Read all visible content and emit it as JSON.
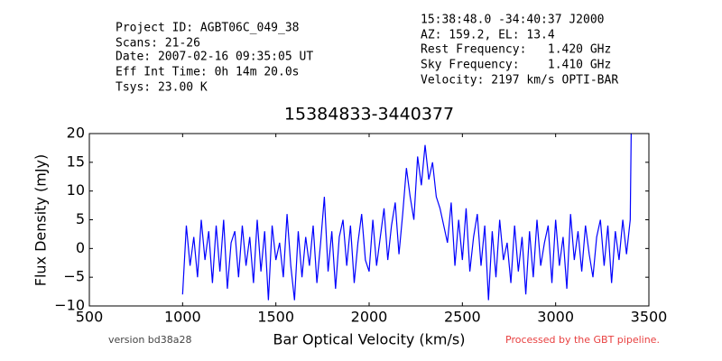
{
  "header": {
    "left": [
      "Project ID: AGBT06C_049_38",
      "Scans: 21-26",
      "Date: 2007-02-16 09:35:05 UT",
      "Eff Int Time: 0h 14m 20.0s",
      "Tsys: 23.00 K"
    ],
    "right": [
      "15:38:48.0 -34:40:37 J2000",
      "AZ: 159.2, EL: 13.4",
      "Rest Frequency:   1.420 GHz",
      "Sky Frequency:    1.410 GHz",
      "Velocity: 2197 km/s OPTI-BAR"
    ]
  },
  "footer": {
    "version": "version bd38a28",
    "pipeline": "Processed by the GBT pipeline."
  },
  "chart_data": {
    "type": "line",
    "title": "15384833-3440377",
    "x_label": "Bar Optical Velocity (km/s)",
    "y_label": "Flux Density (mJy)",
    "color": "#0000ff",
    "x": [
      1000,
      1020,
      1040,
      1060,
      1080,
      1100,
      1120,
      1140,
      1160,
      1180,
      1200,
      1220,
      1240,
      1260,
      1280,
      1300,
      1320,
      1340,
      1360,
      1380,
      1400,
      1420,
      1440,
      1460,
      1480,
      1500,
      1520,
      1540,
      1560,
      1580,
      1600,
      1620,
      1640,
      1660,
      1680,
      1700,
      1720,
      1740,
      1760,
      1780,
      1800,
      1820,
      1840,
      1860,
      1880,
      1900,
      1920,
      1940,
      1960,
      1980,
      2000,
      2020,
      2040,
      2060,
      2080,
      2100,
      2120,
      2140,
      2160,
      2180,
      2200,
      2220,
      2240,
      2260,
      2280,
      2300,
      2320,
      2340,
      2360,
      2380,
      2400,
      2420,
      2440,
      2460,
      2480,
      2500,
      2520,
      2540,
      2560,
      2580,
      2600,
      2620,
      2640,
      2660,
      2680,
      2700,
      2720,
      2740,
      2760,
      2780,
      2800,
      2820,
      2840,
      2860,
      2880,
      2900,
      2920,
      2940,
      2960,
      2980,
      3000,
      3020,
      3040,
      3060,
      3080,
      3100,
      3120,
      3140,
      3160,
      3180,
      3200,
      3220,
      3240,
      3260,
      3280,
      3300,
      3320,
      3340,
      3360,
      3380,
      3400,
      3405
    ],
    "values": [
      -8,
      4,
      -3,
      2,
      -5,
      5,
      -2,
      3,
      -6,
      4,
      -4,
      5,
      -7,
      1,
      3,
      -5,
      4,
      -3,
      2,
      -6,
      5,
      -4,
      3,
      -9,
      4,
      -2,
      1,
      -5,
      6,
      -3,
      -9,
      3,
      -5,
      2,
      -3,
      4,
      -6,
      1,
      9,
      -4,
      3,
      -7,
      2,
      5,
      -3,
      4,
      -6,
      1,
      6,
      -2,
      -4,
      5,
      -3,
      2,
      7,
      -2,
      4,
      8,
      -1,
      6,
      14,
      9,
      5,
      16,
      11,
      18,
      12,
      15,
      9,
      7,
      4,
      1,
      8,
      -3,
      5,
      -2,
      7,
      -4,
      2,
      6,
      -3,
      4,
      -9,
      3,
      -5,
      5,
      -2,
      1,
      -6,
      4,
      -4,
      2,
      -8,
      3,
      -5,
      5,
      -3,
      1,
      4,
      -6,
      5,
      -3,
      2,
      -7,
      6,
      -2,
      3,
      -4,
      4,
      -1,
      -5,
      2,
      5,
      -3,
      4,
      -6,
      3,
      -2,
      5,
      -1,
      5,
      20
    ],
    "xlim": [
      500,
      3500
    ],
    "xticks": [
      500,
      1000,
      1500,
      2000,
      2500,
      3000,
      3500
    ],
    "ylim": [
      -10,
      20
    ],
    "yticks": [
      {
        "value": -10,
        "label": "−10"
      },
      {
        "value": -5,
        "label": "−5"
      },
      0,
      5,
      10,
      15,
      20
    ]
  }
}
